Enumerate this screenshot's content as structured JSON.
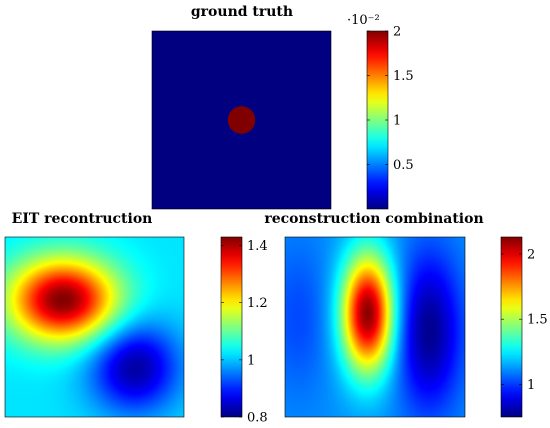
{
  "chart_data": [
    {
      "type": "heatmap",
      "title": "ground truth",
      "description_of_field": "uniform background with one small disc inclusion",
      "background_value": 0.0,
      "inclusion": {
        "center": [
          0.0,
          0.0
        ],
        "radius": 0.077,
        "value": 0.02
      },
      "colorbar": {
        "range": [
          0,
          0.02
        ],
        "ticks": [
          0.005,
          0.01,
          0.015,
          0.02
        ],
        "tick_labels": [
          "0.5",
          "1",
          "1.5",
          "2"
        ],
        "multiplier_label": "·10⁻²"
      },
      "colormap": "jet",
      "domain": [
        [
          -1,
          1
        ],
        [
          -1,
          1
        ]
      ]
    },
    {
      "type": "heatmap",
      "title": "EIT recontruction",
      "colorbar": {
        "range": [
          0.8,
          1.43
        ],
        "ticks": [
          0.8,
          1.0,
          1.2,
          1.4
        ],
        "tick_labels": [
          "0.8",
          "1",
          "1.2",
          "1.4"
        ]
      },
      "colormap": "jet",
      "domain": [
        [
          -1,
          1
        ],
        [
          -1,
          1
        ]
      ],
      "baseline": 1.02,
      "bumps": [
        {
          "center": [
            -0.35,
            -0.3
          ],
          "sigma": [
            0.42,
            0.32
          ],
          "amplitude": 0.41
        },
        {
          "center": [
            0.45,
            0.45
          ],
          "sigma": [
            0.35,
            0.35
          ],
          "amplitude": -0.2
        }
      ]
    },
    {
      "type": "heatmap",
      "title": "reconstruction combination",
      "colorbar": {
        "range": [
          0.75,
          2.13
        ],
        "ticks": [
          1.0,
          1.5,
          2.0
        ],
        "tick_labels": [
          "1",
          "1.5",
          "2"
        ]
      },
      "colormap": "jet",
      "domain": [
        [
          -1,
          1
        ],
        [
          -1,
          1
        ]
      ],
      "baseline": 1.12,
      "bumps": [
        {
          "center": [
            -0.08,
            -0.15
          ],
          "sigma": [
            0.2,
            0.45
          ],
          "amplitude": 1.0
        },
        {
          "center": [
            0.6,
            0.05
          ],
          "sigma": [
            0.25,
            0.6
          ],
          "amplitude": -0.35
        },
        {
          "center": [
            -0.85,
            -0.1
          ],
          "sigma": [
            0.25,
            0.6
          ],
          "amplitude": -0.1
        }
      ]
    }
  ]
}
